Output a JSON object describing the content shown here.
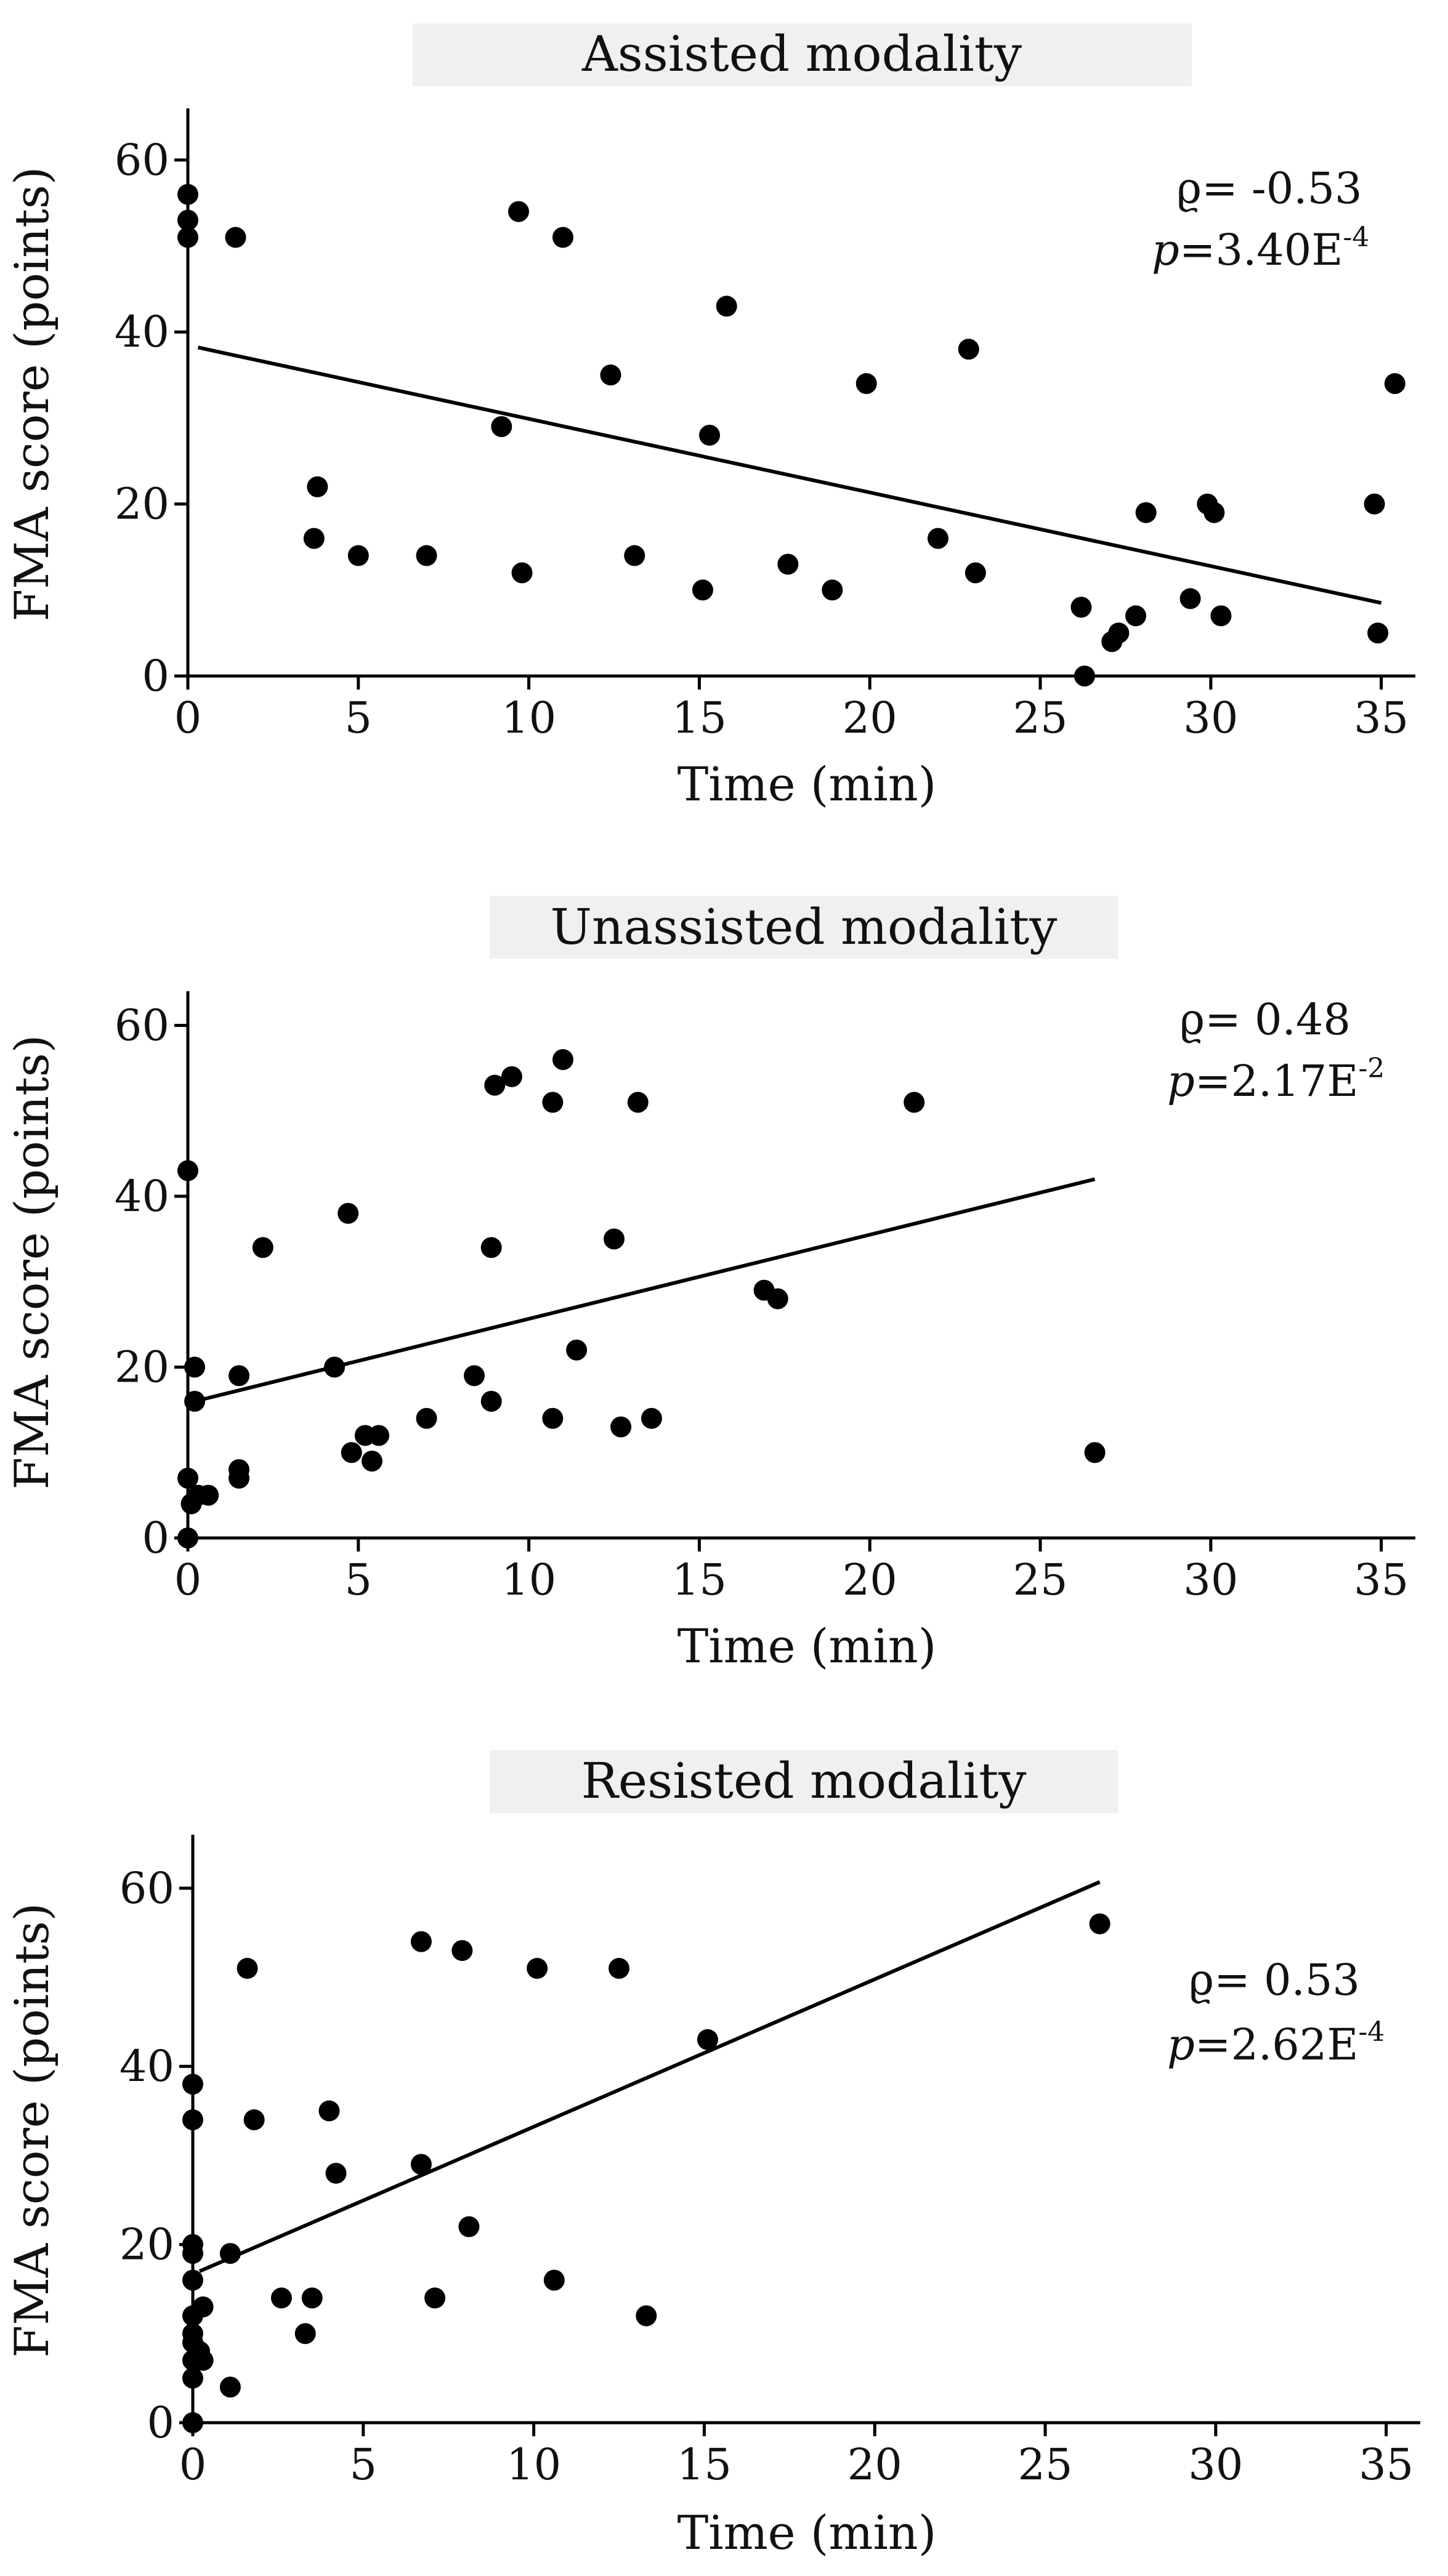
{
  "figure": {
    "background": "#ffffff",
    "title_box_color": "#f0f0f0",
    "marker_color": "#000000",
    "line_color": "#000000"
  },
  "chart_data": [
    {
      "type": "scatter",
      "title": "Assisted modality",
      "xlabel": "Time (min)",
      "ylabel": "FMA score (points)",
      "xlim": [
        0,
        36
      ],
      "ylim": [
        0,
        66
      ],
      "xticks": [
        "0",
        "5",
        "10",
        "15",
        "20",
        "25",
        "30",
        "35"
      ],
      "yticks": [
        "0",
        "20",
        "40",
        "60"
      ],
      "stats": {
        "rho_label": "ϱ= -0.53",
        "p_label": "p",
        "p_value": "=3.40E",
        "p_exponent": "-4"
      },
      "trendline": {
        "x": [
          0.3,
          35
        ],
        "y": [
          38.2,
          8.5
        ]
      },
      "points": [
        [
          0,
          56
        ],
        [
          0,
          53
        ],
        [
          0,
          51
        ],
        [
          1.4,
          51
        ],
        [
          3.7,
          16
        ],
        [
          3.8,
          22
        ],
        [
          5,
          14
        ],
        [
          7,
          14
        ],
        [
          9.2,
          29
        ],
        [
          9.7,
          54
        ],
        [
          9.8,
          12
        ],
        [
          11,
          51
        ],
        [
          12.4,
          35
        ],
        [
          13.1,
          14
        ],
        [
          15.1,
          10
        ],
        [
          15.3,
          28
        ],
        [
          15.8,
          43
        ],
        [
          17.6,
          13
        ],
        [
          18.9,
          10
        ],
        [
          19.9,
          34
        ],
        [
          22,
          16
        ],
        [
          22.9,
          38
        ],
        [
          23.1,
          12
        ],
        [
          26.2,
          8
        ],
        [
          26.3,
          0
        ],
        [
          27.1,
          4
        ],
        [
          27.3,
          5
        ],
        [
          27.8,
          7
        ],
        [
          28.1,
          19
        ],
        [
          29.4,
          9
        ],
        [
          29.9,
          20
        ],
        [
          30.1,
          19
        ],
        [
          30.3,
          7
        ],
        [
          34.8,
          20
        ],
        [
          34.9,
          5
        ],
        [
          35.4,
          34
        ]
      ]
    },
    {
      "type": "scatter",
      "title": "Unassisted modality",
      "xlabel": "Time (min)",
      "ylabel": "FMA score (points)",
      "xlim": [
        0,
        36
      ],
      "ylim": [
        0,
        64
      ],
      "xticks": [
        "0",
        "5",
        "10",
        "15",
        "20",
        "25",
        "30",
        "35"
      ],
      "yticks": [
        "0",
        "20",
        "40",
        "60"
      ],
      "stats": {
        "rho_label": "ϱ= 0.48",
        "p_label": "p",
        "p_value": "=2.17E",
        "p_exponent": "-2"
      },
      "trendline": {
        "x": [
          0.2,
          26.6
        ],
        "y": [
          16,
          42
        ]
      },
      "points": [
        [
          0,
          43
        ],
        [
          0,
          7
        ],
        [
          0,
          0
        ],
        [
          0.1,
          4
        ],
        [
          0.2,
          20
        ],
        [
          0.2,
          16
        ],
        [
          0.3,
          5
        ],
        [
          0.6,
          5
        ],
        [
          1.5,
          19
        ],
        [
          1.5,
          8
        ],
        [
          1.5,
          7
        ],
        [
          2.2,
          34
        ],
        [
          4.3,
          20
        ],
        [
          4.7,
          38
        ],
        [
          4.8,
          10
        ],
        [
          5.2,
          12
        ],
        [
          5.4,
          9
        ],
        [
          5.6,
          12
        ],
        [
          7,
          14
        ],
        [
          8.4,
          19
        ],
        [
          8.9,
          34
        ],
        [
          8.9,
          16
        ],
        [
          9,
          53
        ],
        [
          9.5,
          54
        ],
        [
          10.7,
          51
        ],
        [
          10.7,
          14
        ],
        [
          11,
          56
        ],
        [
          11.4,
          22
        ],
        [
          12.5,
          35
        ],
        [
          12.7,
          13
        ],
        [
          13.2,
          51
        ],
        [
          13.6,
          14
        ],
        [
          16.9,
          29
        ],
        [
          17.3,
          28
        ],
        [
          21.3,
          51
        ],
        [
          26.6,
          10
        ]
      ]
    },
    {
      "type": "scatter",
      "title": "Resisted modality",
      "xlabel": "Time (min)",
      "ylabel": "FMA score (points)",
      "xlim": [
        0,
        36
      ],
      "ylim": [
        0,
        66
      ],
      "xticks": [
        "0",
        "5",
        "10",
        "15",
        "20",
        "25",
        "30",
        "35"
      ],
      "yticks": [
        "0",
        "20",
        "40",
        "60"
      ],
      "stats": {
        "rho_label": "ϱ= 0.53",
        "p_label": "p",
        "p_value": "=2.62E",
        "p_exponent": "-4"
      },
      "trendline": {
        "x": [
          0.2,
          26.6
        ],
        "y": [
          17,
          60.7
        ]
      },
      "points": [
        [
          0,
          38
        ],
        [
          0,
          34
        ],
        [
          0,
          20
        ],
        [
          0,
          19
        ],
        [
          0,
          16
        ],
        [
          0,
          12
        ],
        [
          0,
          10
        ],
        [
          0,
          9
        ],
        [
          0,
          7
        ],
        [
          0,
          5
        ],
        [
          0,
          0
        ],
        [
          0.2,
          8
        ],
        [
          0.3,
          7
        ],
        [
          0.3,
          13
        ],
        [
          1.1,
          19
        ],
        [
          1.1,
          4
        ],
        [
          1.6,
          51
        ],
        [
          1.8,
          34
        ],
        [
          2.6,
          14
        ],
        [
          3.3,
          10
        ],
        [
          3.5,
          14
        ],
        [
          4,
          35
        ],
        [
          4.2,
          28
        ],
        [
          6.7,
          54
        ],
        [
          6.7,
          29
        ],
        [
          7.1,
          14
        ],
        [
          7.9,
          53
        ],
        [
          8.1,
          22
        ],
        [
          10.1,
          51
        ],
        [
          10.6,
          16
        ],
        [
          12.5,
          51
        ],
        [
          13.3,
          12
        ],
        [
          15.1,
          43
        ],
        [
          26.6,
          56
        ]
      ]
    }
  ]
}
